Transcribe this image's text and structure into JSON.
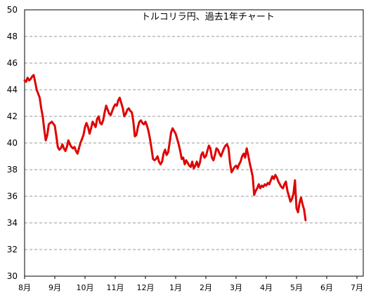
{
  "chart_data": {
    "type": "line",
    "title": "トルコリラ円、過去1年チャート",
    "xlabel": "",
    "ylabel": "",
    "ylim": [
      30,
      50
    ],
    "yticks": [
      "30",
      "32",
      "34",
      "36",
      "38",
      "40",
      "42",
      "44",
      "46",
      "48",
      "50"
    ],
    "xticks": [
      "8月",
      "9月",
      "10月",
      "11月",
      "12月",
      "1月",
      "2月",
      "3月",
      "4月",
      "5月",
      "6月",
      "7月"
    ],
    "grid": true,
    "legend": "none",
    "line_color": "#e00000",
    "series": [
      {
        "points": [
          [
            0.0,
            44.7
          ],
          [
            0.05,
            44.6
          ],
          [
            0.1,
            44.9
          ],
          [
            0.15,
            44.7
          ],
          [
            0.2,
            44.8
          ],
          [
            0.25,
            45.0
          ],
          [
            0.3,
            45.1
          ],
          [
            0.35,
            44.6
          ],
          [
            0.4,
            44.0
          ],
          [
            0.5,
            43.4
          ],
          [
            0.55,
            42.6
          ],
          [
            0.6,
            42.0
          ],
          [
            0.65,
            41.0
          ],
          [
            0.7,
            40.2
          ],
          [
            0.75,
            40.6
          ],
          [
            0.8,
            41.4
          ],
          [
            0.9,
            41.6
          ],
          [
            1.0,
            41.3
          ],
          [
            1.05,
            40.5
          ],
          [
            1.1,
            39.7
          ],
          [
            1.15,
            39.5
          ],
          [
            1.2,
            39.6
          ],
          [
            1.25,
            39.9
          ],
          [
            1.3,
            39.6
          ],
          [
            1.35,
            39.4
          ],
          [
            1.4,
            39.7
          ],
          [
            1.45,
            40.2
          ],
          [
            1.5,
            39.9
          ],
          [
            1.55,
            39.7
          ],
          [
            1.6,
            39.6
          ],
          [
            1.65,
            39.7
          ],
          [
            1.7,
            39.4
          ],
          [
            1.75,
            39.2
          ],
          [
            1.8,
            39.6
          ],
          [
            1.85,
            40.0
          ],
          [
            1.9,
            40.3
          ],
          [
            1.95,
            40.6
          ],
          [
            2.0,
            41.2
          ],
          [
            2.05,
            41.5
          ],
          [
            2.1,
            41.2
          ],
          [
            2.15,
            40.7
          ],
          [
            2.2,
            41.1
          ],
          [
            2.25,
            41.6
          ],
          [
            2.3,
            41.4
          ],
          [
            2.35,
            41.2
          ],
          [
            2.4,
            41.8
          ],
          [
            2.45,
            42.0
          ],
          [
            2.5,
            41.5
          ],
          [
            2.55,
            41.4
          ],
          [
            2.6,
            41.7
          ],
          [
            2.65,
            42.3
          ],
          [
            2.7,
            42.8
          ],
          [
            2.75,
            42.5
          ],
          [
            2.8,
            42.2
          ],
          [
            2.85,
            42.1
          ],
          [
            2.9,
            42.4
          ],
          [
            2.95,
            42.7
          ],
          [
            3.0,
            42.9
          ],
          [
            3.05,
            42.8
          ],
          [
            3.1,
            43.2
          ],
          [
            3.15,
            43.4
          ],
          [
            3.2,
            43.0
          ],
          [
            3.25,
            42.6
          ],
          [
            3.3,
            42.0
          ],
          [
            3.35,
            42.2
          ],
          [
            3.4,
            42.5
          ],
          [
            3.45,
            42.6
          ],
          [
            3.5,
            42.4
          ],
          [
            3.55,
            42.3
          ],
          [
            3.6,
            41.6
          ],
          [
            3.65,
            40.5
          ],
          [
            3.7,
            40.6
          ],
          [
            3.75,
            41.2
          ],
          [
            3.8,
            41.6
          ],
          [
            3.85,
            41.7
          ],
          [
            3.9,
            41.5
          ],
          [
            3.95,
            41.4
          ],
          [
            4.0,
            41.6
          ],
          [
            4.05,
            41.3
          ],
          [
            4.1,
            40.9
          ],
          [
            4.15,
            40.3
          ],
          [
            4.2,
            39.6
          ],
          [
            4.25,
            38.8
          ],
          [
            4.3,
            38.7
          ],
          [
            4.35,
            38.8
          ],
          [
            4.4,
            39.0
          ],
          [
            4.45,
            38.6
          ],
          [
            4.5,
            38.4
          ],
          [
            4.55,
            38.6
          ],
          [
            4.6,
            39.2
          ],
          [
            4.65,
            39.5
          ],
          [
            4.7,
            39.1
          ],
          [
            4.75,
            39.3
          ],
          [
            4.8,
            40.0
          ],
          [
            4.85,
            40.8
          ],
          [
            4.9,
            41.1
          ],
          [
            4.95,
            40.9
          ],
          [
            5.0,
            40.7
          ],
          [
            5.05,
            40.3
          ],
          [
            5.1,
            39.9
          ],
          [
            5.15,
            39.4
          ],
          [
            5.2,
            38.8
          ],
          [
            5.25,
            38.9
          ],
          [
            5.3,
            38.4
          ],
          [
            5.35,
            38.7
          ],
          [
            5.4,
            38.5
          ],
          [
            5.45,
            38.3
          ],
          [
            5.5,
            38.2
          ],
          [
            5.55,
            38.6
          ],
          [
            5.6,
            38.1
          ],
          [
            5.65,
            38.3
          ],
          [
            5.7,
            38.6
          ],
          [
            5.75,
            38.2
          ],
          [
            5.8,
            38.5
          ],
          [
            5.85,
            39.1
          ],
          [
            5.9,
            39.3
          ],
          [
            5.95,
            38.9
          ],
          [
            6.0,
            39.0
          ],
          [
            6.05,
            39.4
          ],
          [
            6.1,
            39.8
          ],
          [
            6.15,
            39.6
          ],
          [
            6.2,
            38.9
          ],
          [
            6.25,
            38.7
          ],
          [
            6.3,
            39.1
          ],
          [
            6.35,
            39.6
          ],
          [
            6.4,
            39.5
          ],
          [
            6.45,
            39.2
          ],
          [
            6.5,
            39.0
          ],
          [
            6.55,
            39.3
          ],
          [
            6.6,
            39.6
          ],
          [
            6.65,
            39.8
          ],
          [
            6.7,
            39.9
          ],
          [
            6.75,
            39.6
          ],
          [
            6.8,
            38.5
          ],
          [
            6.85,
            37.8
          ],
          [
            6.9,
            38.0
          ],
          [
            6.95,
            38.2
          ],
          [
            7.0,
            38.3
          ],
          [
            7.05,
            38.1
          ],
          [
            7.1,
            38.4
          ],
          [
            7.15,
            38.6
          ],
          [
            7.2,
            39.0
          ],
          [
            7.25,
            39.2
          ],
          [
            7.3,
            38.9
          ],
          [
            7.35,
            39.6
          ],
          [
            7.4,
            39.1
          ],
          [
            7.45,
            38.5
          ],
          [
            7.5,
            38.0
          ],
          [
            7.55,
            37.5
          ],
          [
            7.6,
            36.1
          ],
          [
            7.65,
            36.4
          ],
          [
            7.7,
            36.6
          ],
          [
            7.75,
            36.9
          ],
          [
            7.8,
            36.6
          ],
          [
            7.85,
            36.8
          ],
          [
            7.9,
            36.7
          ],
          [
            7.95,
            36.9
          ],
          [
            8.0,
            36.8
          ],
          [
            8.05,
            37.0
          ],
          [
            8.1,
            36.9
          ],
          [
            8.15,
            37.2
          ],
          [
            8.2,
            37.5
          ],
          [
            8.25,
            37.3
          ],
          [
            8.3,
            37.6
          ],
          [
            8.35,
            37.4
          ],
          [
            8.4,
            37.1
          ],
          [
            8.45,
            36.9
          ],
          [
            8.5,
            36.7
          ],
          [
            8.55,
            36.6
          ],
          [
            8.6,
            36.9
          ],
          [
            8.65,
            37.1
          ],
          [
            8.7,
            36.4
          ],
          [
            8.75,
            36.0
          ],
          [
            8.8,
            35.6
          ],
          [
            8.85,
            35.8
          ],
          [
            8.9,
            36.2
          ],
          [
            8.95,
            37.2
          ],
          [
            9.0,
            35.1
          ],
          [
            9.05,
            34.8
          ],
          [
            9.1,
            35.5
          ],
          [
            9.15,
            35.9
          ],
          [
            9.2,
            35.4
          ],
          [
            9.25,
            35.0
          ],
          [
            9.3,
            34.2
          ]
        ]
      }
    ]
  }
}
